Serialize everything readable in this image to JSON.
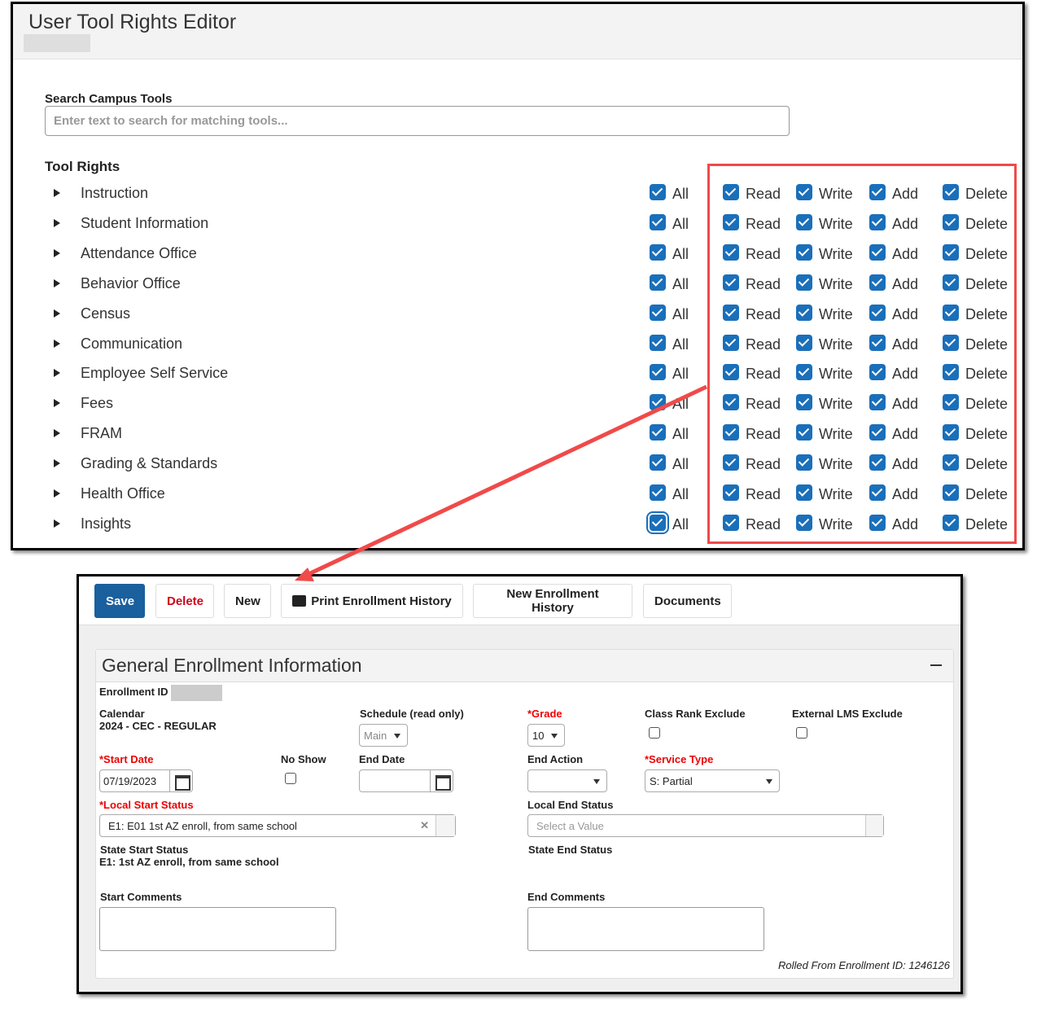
{
  "rights_editor": {
    "title": "User Tool Rights Editor",
    "search_label": "Search Campus Tools",
    "search_placeholder": "Enter text to search for matching tools...",
    "search_value": "",
    "section_label": "Tool Rights",
    "checkbox_labels": {
      "all": "All",
      "read": "Read",
      "write": "Write",
      "add": "Add",
      "delete": "Delete"
    },
    "tools": [
      {
        "name": "Instruction",
        "all": true,
        "read": true,
        "write": true,
        "add": true,
        "delete": true
      },
      {
        "name": "Student Information",
        "all": true,
        "read": true,
        "write": true,
        "add": true,
        "delete": true
      },
      {
        "name": "Attendance Office",
        "all": true,
        "read": true,
        "write": true,
        "add": true,
        "delete": true
      },
      {
        "name": "Behavior Office",
        "all": true,
        "read": true,
        "write": true,
        "add": true,
        "delete": true
      },
      {
        "name": "Census",
        "all": true,
        "read": true,
        "write": true,
        "add": true,
        "delete": true
      },
      {
        "name": "Communication",
        "all": true,
        "read": true,
        "write": true,
        "add": true,
        "delete": true
      },
      {
        "name": "Employee Self Service",
        "all": true,
        "read": true,
        "write": true,
        "add": true,
        "delete": true
      },
      {
        "name": "Fees",
        "all": true,
        "read": true,
        "write": true,
        "add": true,
        "delete": true
      },
      {
        "name": "FRAM",
        "all": true,
        "read": true,
        "write": true,
        "add": true,
        "delete": true
      },
      {
        "name": "Grading & Standards",
        "all": true,
        "read": true,
        "write": true,
        "add": true,
        "delete": true
      },
      {
        "name": "Health Office",
        "all": true,
        "read": true,
        "write": true,
        "add": true,
        "delete": true
      },
      {
        "name": "Insights",
        "all": true,
        "read": true,
        "write": true,
        "add": true,
        "delete": true
      }
    ],
    "colors": {
      "checkbox": "#1a6fba",
      "highlight": "#f04a4a"
    }
  },
  "enrollment": {
    "toolbar": {
      "save": "Save",
      "delete": "Delete",
      "new": "New",
      "print": "Print Enrollment History",
      "new_history": "New Enrollment History",
      "documents": "Documents",
      "print_icon": "printer-icon"
    },
    "section_title": "General Enrollment Information",
    "enrollment_id_label": "Enrollment ID",
    "calendar_label": "Calendar",
    "calendar_value": "2024 - CEC - REGULAR",
    "schedule_label": "Schedule (read only)",
    "schedule_value": "Main",
    "grade_label": "*Grade",
    "grade_value": "10",
    "class_rank_label": "Class Rank Exclude",
    "class_rank_checked": false,
    "lms_label": "External LMS Exclude",
    "lms_checked": false,
    "start_date_label": "*Start Date",
    "start_date_value": "07/19/2023",
    "no_show_label": "No Show",
    "no_show_checked": false,
    "end_date_label": "End Date",
    "end_date_value": "",
    "end_action_label": "End Action",
    "end_action_value": "",
    "service_type_label": "*Service Type",
    "service_type_value": "S: Partial",
    "local_start_label": "*Local Start Status",
    "local_start_value": "E1: E01 1st AZ enroll, from same school",
    "local_end_label": "Local End Status",
    "local_end_placeholder": "Select a Value",
    "state_start_label": "State Start Status",
    "state_start_value": "E1: 1st AZ enroll, from same school",
    "state_end_label": "State End Status",
    "start_comments_label": "Start Comments",
    "end_comments_label": "End Comments",
    "rolled_from": "Rolled From Enrollment ID: 1246126"
  }
}
